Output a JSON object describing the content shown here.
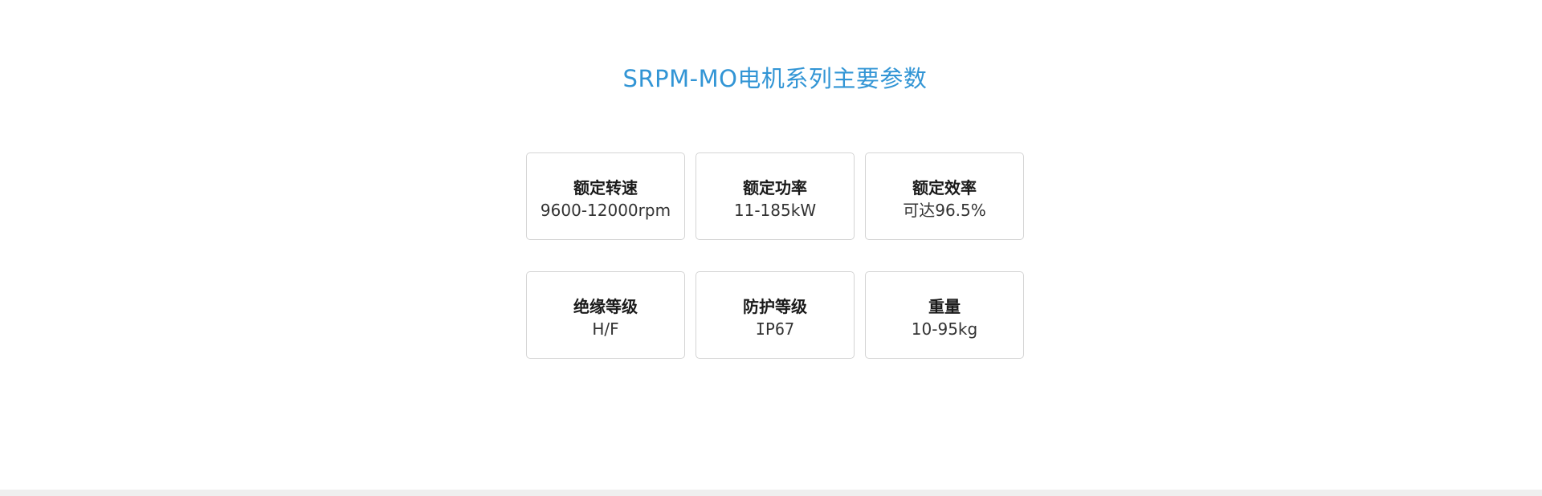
{
  "page": {
    "title": "SRPM-MO电机系列主要参数"
  },
  "colors": {
    "background": "#ffffff",
    "title_blue": "#3295d5",
    "card_border": "#d4d4d4",
    "heading_text": "#1a1a1a",
    "value_text": "#333333",
    "footer_strip": "#efefef"
  },
  "parameters": [
    {
      "label": "额定转速",
      "value": "9600-12000rpm"
    },
    {
      "label": "额定功率",
      "value": "11-185kW"
    },
    {
      "label": "额定效率",
      "value": "可达96.5%"
    },
    {
      "label": "绝缘等级",
      "value": "H/F"
    },
    {
      "label": "防护等级",
      "value": "IP67",
      "mono": true
    },
    {
      "label": "重量",
      "value": "10-95kg"
    }
  ]
}
